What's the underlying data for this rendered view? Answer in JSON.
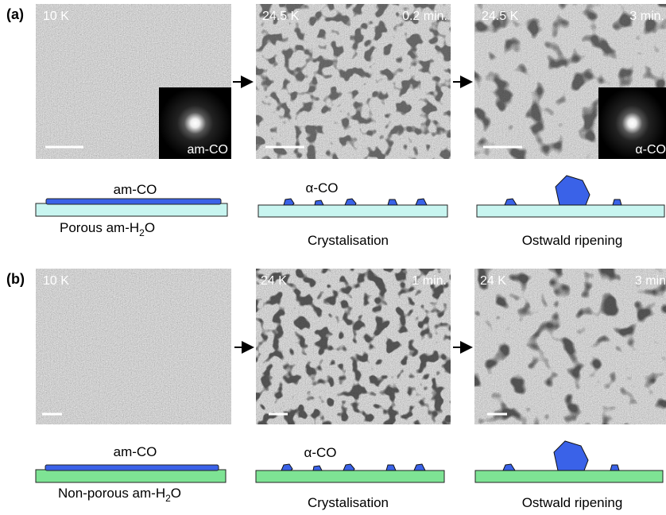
{
  "rows": [
    {
      "label": "(a)",
      "panels": [
        {
          "temperature": "10 K",
          "inset": "am-CO"
        },
        {
          "temperature": "24.5 K",
          "time": "0.2 min."
        },
        {
          "temperature": "24.5 K",
          "time": "3 min.",
          "inset": "α-CO"
        }
      ],
      "schematics": [
        {
          "top": "am-CO",
          "bottom": [
            "Porous am-H",
            "2",
            "O"
          ]
        },
        {
          "top": "α-CO",
          "bottom": "Crystalisation"
        },
        {
          "bottom": "Ostwald ripening"
        }
      ]
    },
    {
      "label": "(b)",
      "panels": [
        {
          "temperature": "10 K"
        },
        {
          "temperature": "24 K",
          "time": "1 min."
        },
        {
          "temperature": "24 K",
          "time": "3 min"
        }
      ],
      "schematics": [
        {
          "top": "am-CO",
          "bottom": [
            "Non-porous am-H",
            "2",
            "O"
          ]
        },
        {
          "top": "α-CO",
          "bottom": "Crystalisation"
        },
        {
          "bottom": "Ostwald ripening"
        }
      ]
    }
  ]
}
